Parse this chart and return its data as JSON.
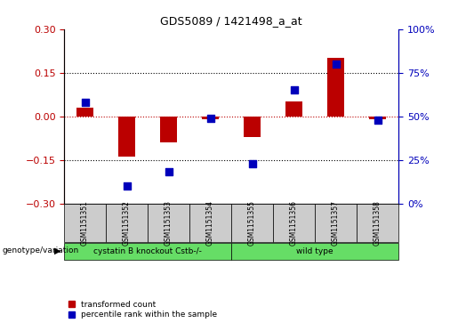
{
  "title": "GDS5089 / 1421498_a_at",
  "samples": [
    "GSM1151351",
    "GSM1151352",
    "GSM1151353",
    "GSM1151354",
    "GSM1151355",
    "GSM1151356",
    "GSM1151357",
    "GSM1151358"
  ],
  "red_values": [
    0.03,
    -0.14,
    -0.09,
    -0.01,
    -0.07,
    0.05,
    0.2,
    -0.01
  ],
  "blue_pct": [
    58,
    10,
    18,
    49,
    23,
    65,
    80,
    48
  ],
  "ylim_left": [
    -0.3,
    0.3
  ],
  "ylim_right": [
    0,
    100
  ],
  "yticks_left": [
    -0.3,
    -0.15,
    0.0,
    0.15,
    0.3
  ],
  "yticks_right": [
    0,
    25,
    50,
    75,
    100
  ],
  "group1_label": "cystatin B knockout Cstb-/-",
  "group1_count": 4,
  "group2_label": "wild type",
  "group2_count": 4,
  "group_label_left": "genotype/variation",
  "legend_red": "transformed count",
  "legend_blue": "percentile rank within the sample",
  "red_color": "#BB0000",
  "blue_color": "#0000BB",
  "green_color": "#66DD66",
  "gray_color": "#CCCCCC",
  "bar_width": 0.4
}
